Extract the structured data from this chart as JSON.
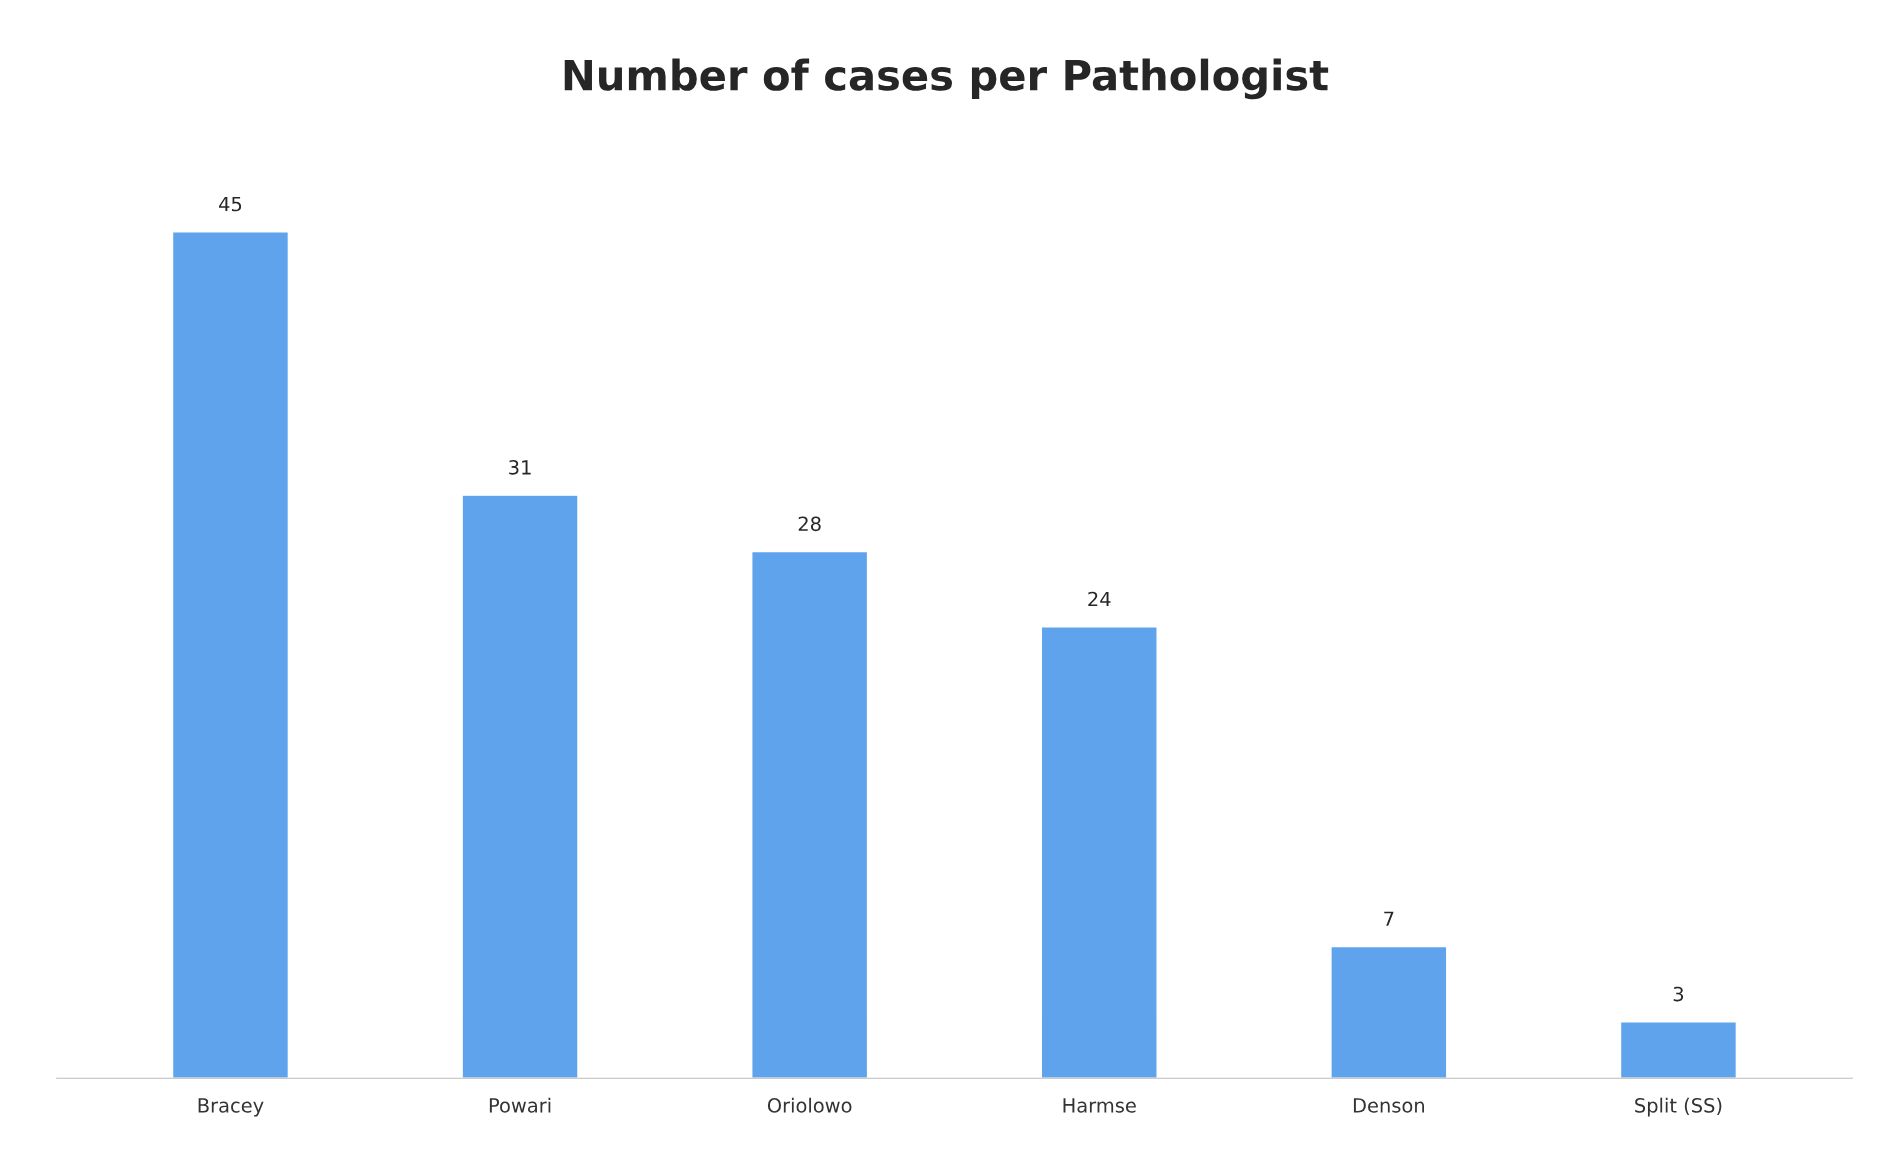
{
  "chart_data": {
    "type": "bar",
    "title": "Number of cases per Pathologist",
    "categories": [
      "Bracey",
      "Powari",
      "Oriolowo",
      "Harmse",
      "Denson",
      "Split (SS)"
    ],
    "values": [
      45,
      31,
      28,
      24,
      7,
      3
    ],
    "color": "#5fa3ec",
    "data_labels": true,
    "grid": false,
    "legend": false
  }
}
